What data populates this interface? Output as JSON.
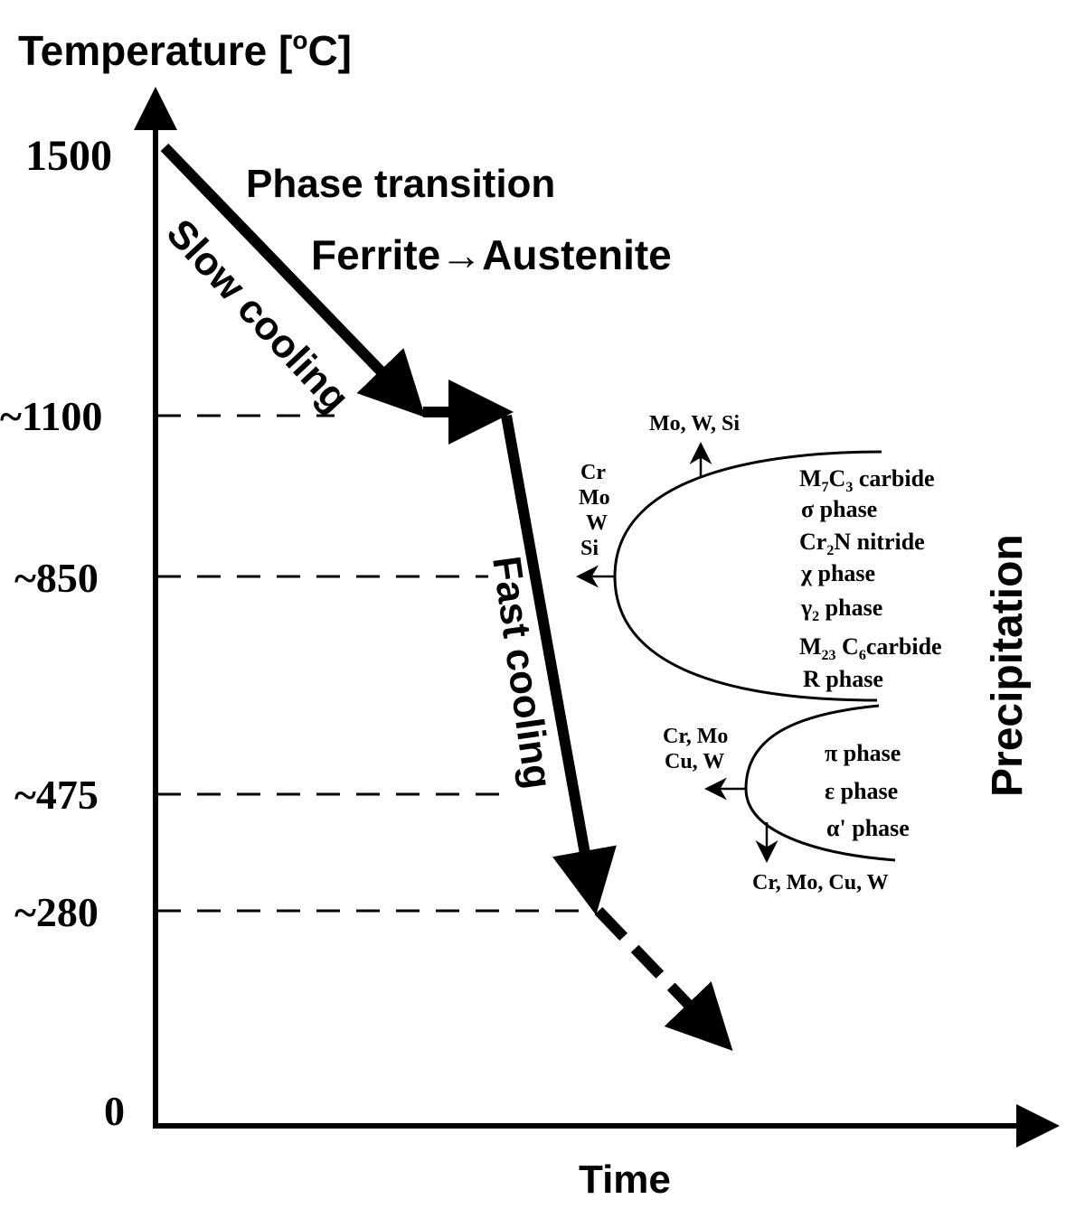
{
  "axes": {
    "y_label": "Temperature  [",
    "y_label_sup": "o",
    "y_label_end": "C]",
    "x_label": "Time",
    "ticks": [
      "1500",
      "~1100",
      "~850",
      "~475",
      "~280",
      "0"
    ]
  },
  "annotations": {
    "phase_transition": "Phase transition",
    "ferrite_austenite": "Ferrite→Austenite",
    "slow_cooling": "Slow cooling",
    "fast_cooling": "Fast cooling",
    "precipitation": "Precipitation"
  },
  "upper_nose": {
    "top_arrow": "Mo, W, Si",
    "left_elements": [
      "Cr",
      "Mo",
      "W",
      "Si"
    ],
    "phases": [
      {
        "main": "M",
        "sub": "7",
        "mid": "C",
        "sub2": "3",
        "rest": " carbide"
      },
      {
        "main": "σ phase"
      },
      {
        "main": "Cr",
        "sub": "2",
        "rest": "N nitride"
      },
      {
        "main": "χ  phase"
      },
      {
        "main": "γ",
        "sub": "2",
        "rest": " phase"
      },
      {
        "main": "M",
        "sub": "23",
        "mid": " C",
        "sub2": "6",
        "rest": "carbide"
      },
      {
        "main": "R phase"
      }
    ]
  },
  "lower_nose": {
    "left_elements": [
      "Cr, Mo",
      "Cu, W"
    ],
    "bottom_arrow": "Cr, Mo, Cu, W",
    "phases": [
      "π  phase",
      "ε  phase",
      "α' phase"
    ]
  }
}
